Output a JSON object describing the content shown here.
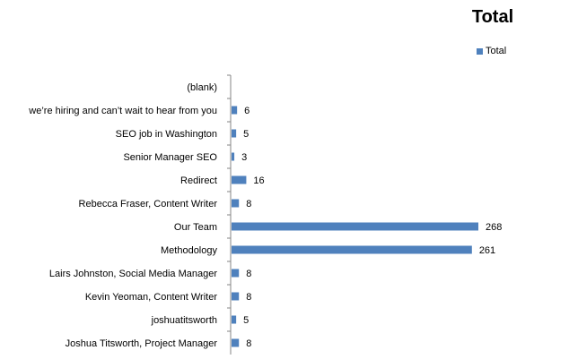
{
  "chart_data": {
    "type": "bar",
    "orientation": "horizontal",
    "title": "Total",
    "legend": {
      "entries": [
        "Total"
      ],
      "placement": "top-right"
    },
    "categories": [
      "(blank)",
      "we’re hiring and can’t wait to hear from you",
      "SEO job in Washington",
      "Senior Manager SEO",
      "Redirect",
      "Rebecca Fraser, Content Writer",
      "Our Team",
      "Methodology",
      "Lairs Johnston, Social Media Manager",
      "Kevin Yeoman, Content Writer",
      "joshuatitsworth",
      "Joshua Titsworth, Project Manager"
    ],
    "series": [
      {
        "name": "Total",
        "values": [
          null,
          6,
          5,
          3,
          16,
          8,
          268,
          261,
          8,
          8,
          5,
          8
        ]
      }
    ],
    "xlim": [
      0,
      280
    ],
    "grid": false,
    "colors": {
      "bar": "#4f81bd",
      "axis": "#868686"
    }
  }
}
